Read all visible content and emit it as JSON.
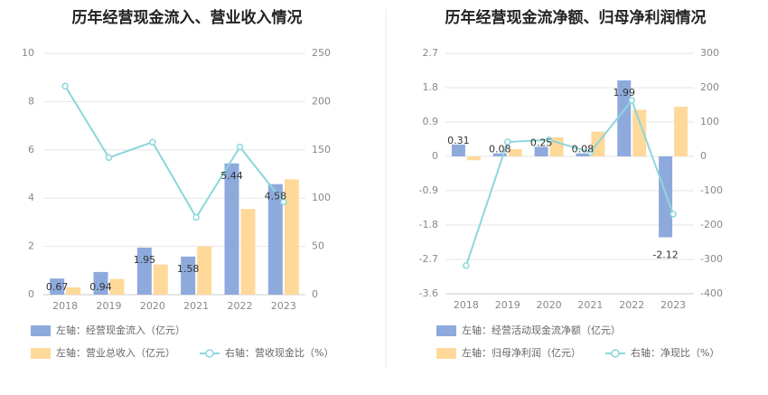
{
  "charts": [
    {
      "type": "bar+line",
      "title": "历年经营现金流入、营业收入情况",
      "categories": [
        "2018",
        "2019",
        "2020",
        "2021",
        "2022",
        "2023"
      ],
      "left_axis": {
        "min": 0,
        "max": 10,
        "ticks": [
          "0",
          "2",
          "4",
          "6",
          "8",
          "10"
        ],
        "tick_values": [
          0,
          2,
          4,
          6,
          8,
          10
        ]
      },
      "right_axis": {
        "min": 0,
        "max": 250,
        "ticks": [
          "0",
          "50",
          "100",
          "150",
          "200",
          "250"
        ],
        "tick_values": [
          0,
          50,
          100,
          150,
          200,
          250
        ]
      },
      "series": [
        {
          "name": "左轴：经营现金流入（亿元）",
          "kind": "bar",
          "axis": "left",
          "color": "#8eaadc",
          "values": [
            0.67,
            0.94,
            1.95,
            1.58,
            5.44,
            4.58
          ],
          "labels": [
            "0.67",
            "0.94",
            "1.95",
            "1.58",
            "5.44",
            "4.58"
          ]
        },
        {
          "name": "左轴：营业总收入（亿元）",
          "kind": "bar",
          "axis": "left",
          "color": "#ffd99a",
          "values": [
            0.3,
            0.65,
            1.25,
            2.0,
            3.55,
            4.78
          ]
        },
        {
          "name": "右轴：营收现金比（%）",
          "kind": "line",
          "axis": "right",
          "color": "#8dd6dc",
          "values": [
            216,
            142,
            158,
            80,
            153,
            96
          ]
        }
      ],
      "legend_position": "bottom-left"
    },
    {
      "type": "bar+line",
      "title": "历年经营现金流净额、归母净利润情况",
      "categories": [
        "2018",
        "2019",
        "2020",
        "2021",
        "2022",
        "2023"
      ],
      "left_axis": {
        "min": -3.6,
        "max": 2.7,
        "ticks": [
          "-3.6",
          "-2.7",
          "-1.8",
          "-0.9",
          "0",
          "0.9",
          "1.8",
          "2.7"
        ],
        "tick_values": [
          -3.6,
          -2.7,
          -1.8,
          -0.9,
          0,
          0.9,
          1.8,
          2.7
        ]
      },
      "right_axis": {
        "min": -400,
        "max": 300,
        "ticks": [
          "-400",
          "-300",
          "-200",
          "-100",
          "0",
          "100",
          "200",
          "300"
        ],
        "tick_values": [
          -400,
          -300,
          -200,
          -100,
          0,
          100,
          200,
          300
        ]
      },
      "series": [
        {
          "name": "左轴：经营活动现金流净额（亿元）",
          "kind": "bar",
          "axis": "left",
          "color": "#8eaadc",
          "values": [
            0.31,
            0.08,
            0.25,
            0.08,
            1.99,
            -2.12
          ],
          "labels": [
            "0.31",
            "0.08",
            "0.25",
            "0.08",
            "1.99",
            "-2.12"
          ]
        },
        {
          "name": "左轴：归母净利润（亿元）",
          "kind": "bar",
          "axis": "left",
          "color": "#ffd99a",
          "values": [
            -0.1,
            0.19,
            0.5,
            0.65,
            1.22,
            1.3
          ]
        },
        {
          "name": "右轴：净现比（%）",
          "kind": "line",
          "axis": "right",
          "color": "#8dd6dc",
          "values": [
            -318,
            42,
            48,
            12,
            163,
            -168
          ]
        }
      ],
      "legend_position": "bottom-left"
    }
  ]
}
